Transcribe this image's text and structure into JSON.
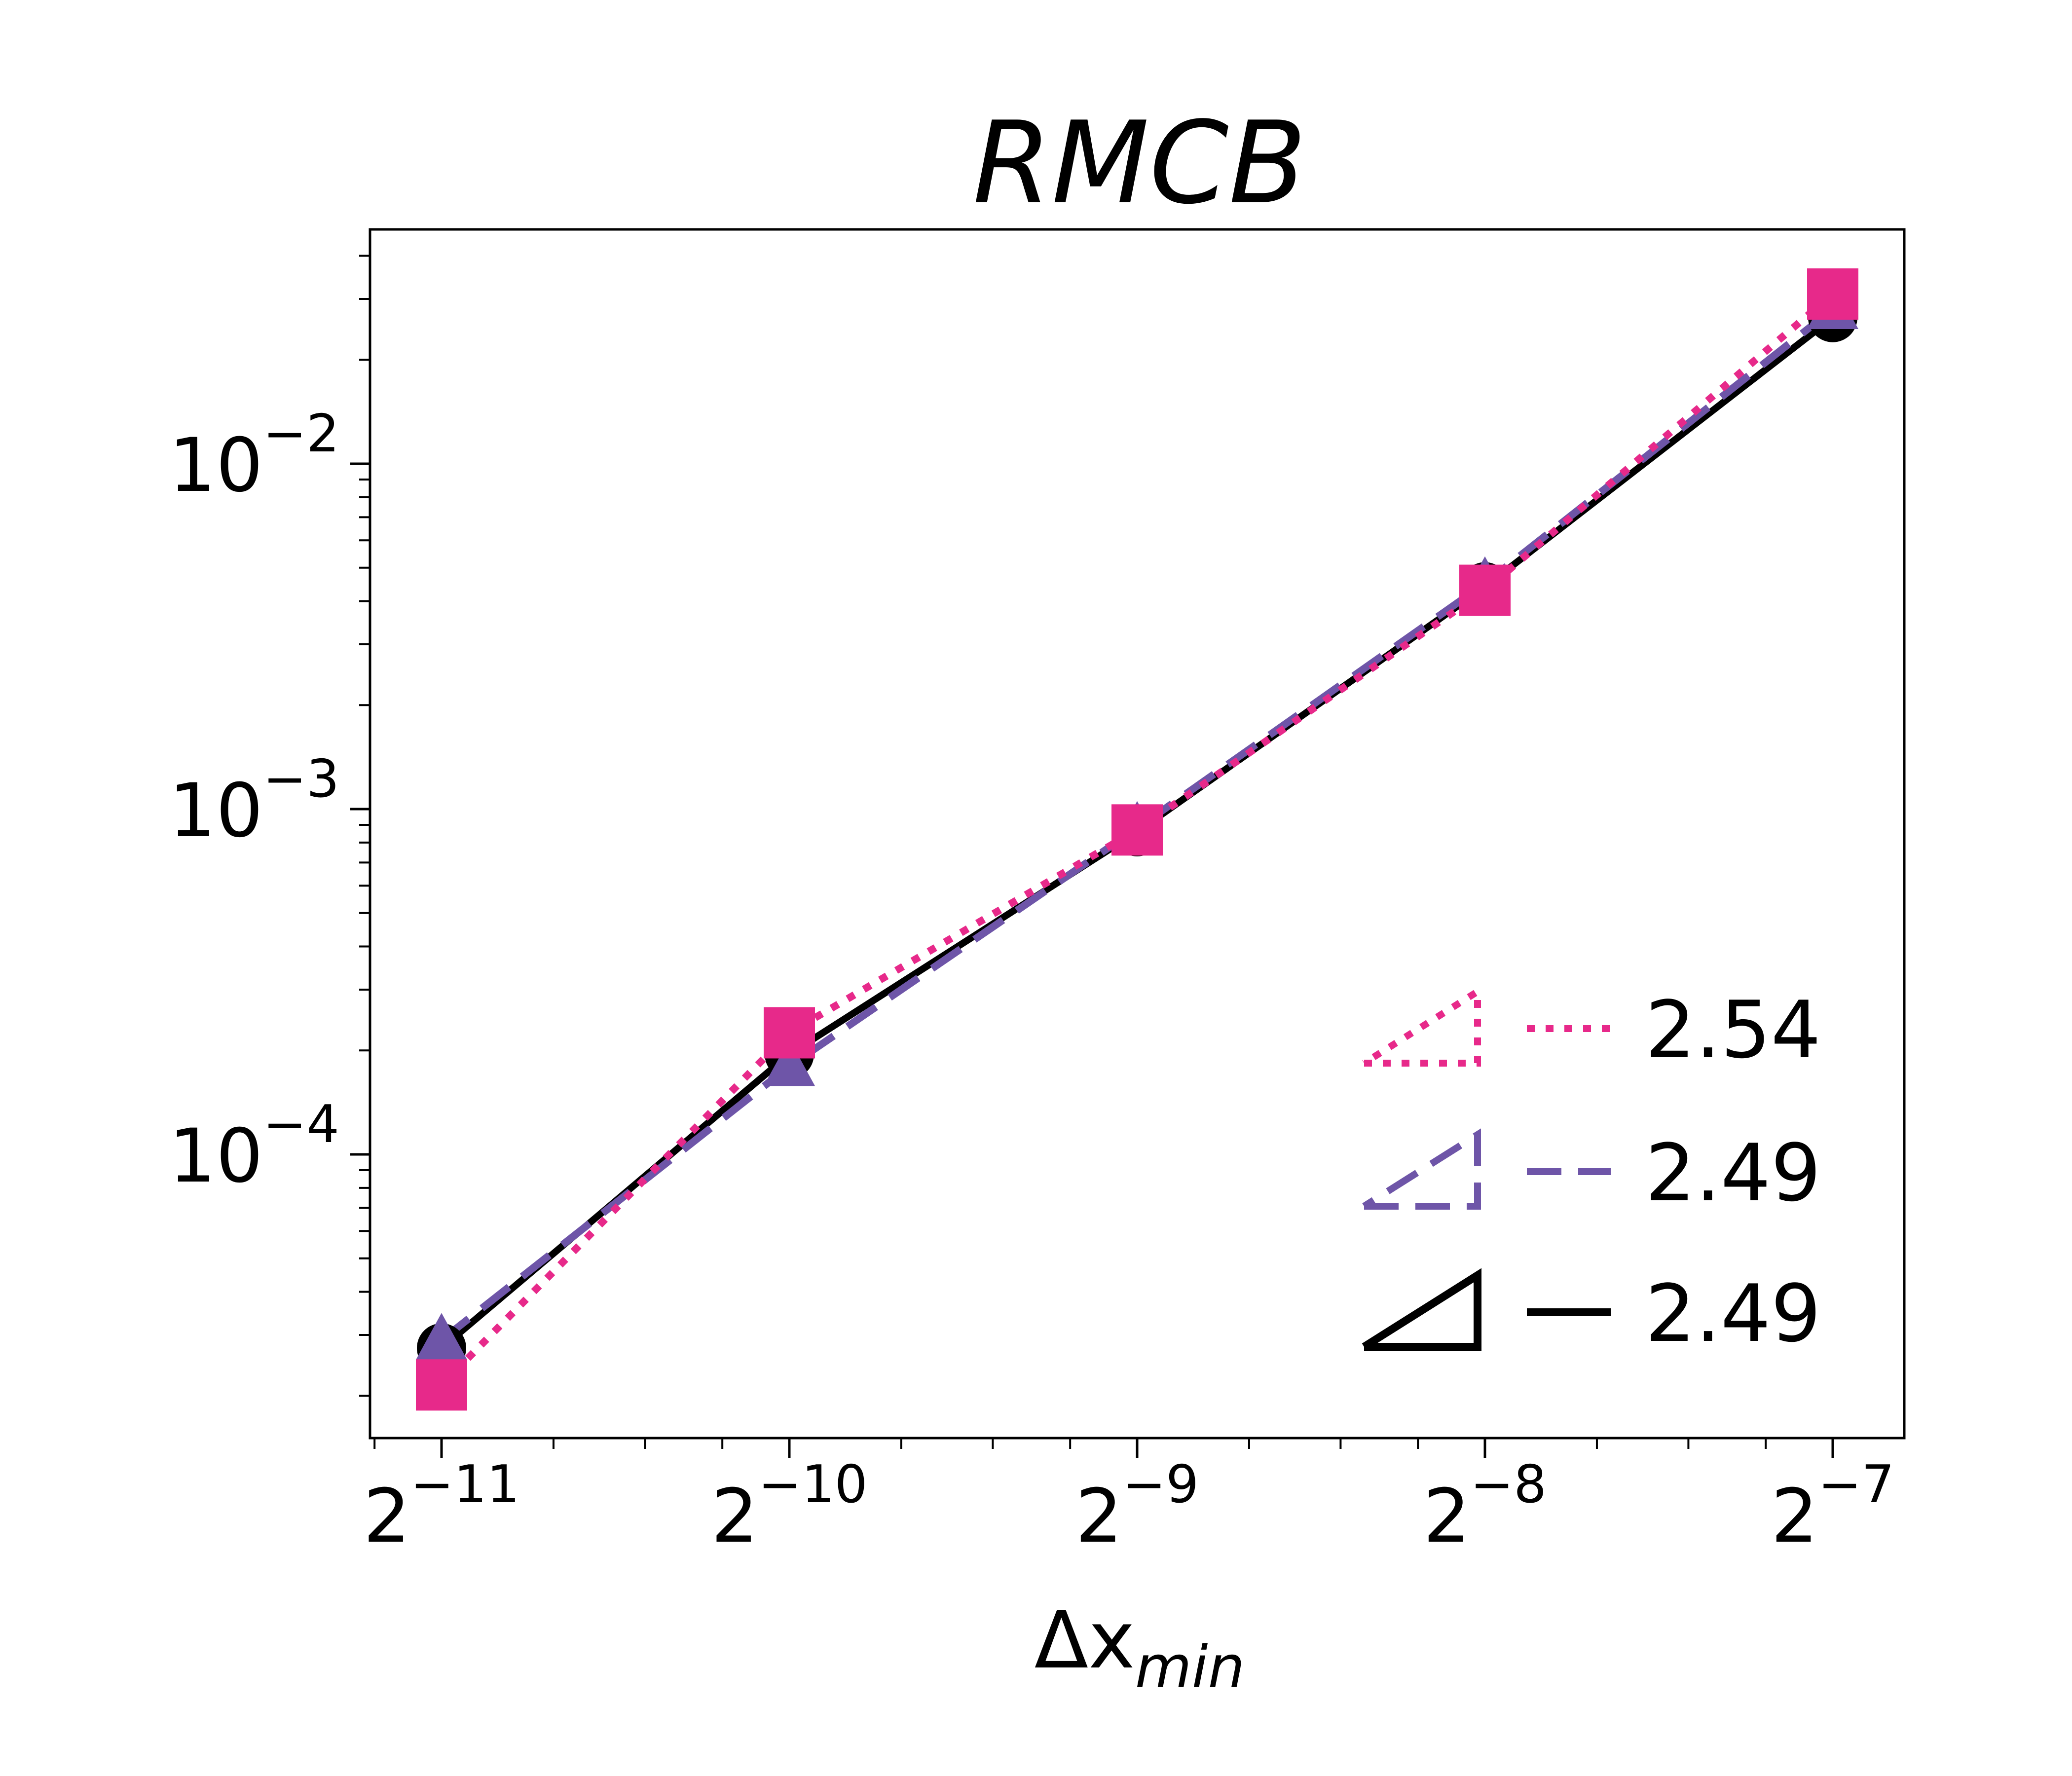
{
  "chart_data": {
    "type": "line",
    "title": "RMCB",
    "xlabel_main": "Δx",
    "xlabel_sub": "min",
    "x_scale": "log2",
    "y_scale": "log10",
    "x_ticks": [
      {
        "value": 0.00048828125,
        "base": "2",
        "exp": "−11"
      },
      {
        "value": 0.0009765625,
        "base": "2",
        "exp": "−10"
      },
      {
        "value": 0.001953125,
        "base": "2",
        "exp": "−9"
      },
      {
        "value": 0.00390625,
        "base": "2",
        "exp": "−8"
      },
      {
        "value": 0.0078125,
        "base": "2",
        "exp": "−7"
      }
    ],
    "y_ticks": [
      {
        "value": 0.0001,
        "base": "10",
        "exp": "−4"
      },
      {
        "value": 0.001,
        "base": "10",
        "exp": "−3"
      },
      {
        "value": 0.01,
        "base": "10",
        "exp": "−2"
      }
    ],
    "x": [
      0.00048828125,
      0.0009765625,
      0.001953125,
      0.00390625,
      0.0078125
    ],
    "series": [
      {
        "rate": "2.49",
        "color": "#000000",
        "line": "solid",
        "marker": "circle",
        "values": [
          2.75e-05,
          0.000195,
          0.00086,
          0.0044,
          0.0265
        ]
      },
      {
        "rate": "2.49",
        "color": "#6e55a8",
        "line": "dashed",
        "marker": "triangle",
        "values": [
          2.9e-05,
          0.00018,
          0.00088,
          0.0045,
          0.028
        ]
      },
      {
        "rate": "2.54",
        "color": "#e7298a",
        "line": "dotted",
        "marker": "square",
        "values": [
          2.15e-05,
          0.000225,
          0.00087,
          0.0043,
          0.031
        ]
      }
    ],
    "legend_placement": "bottom-right",
    "grid": false
  }
}
